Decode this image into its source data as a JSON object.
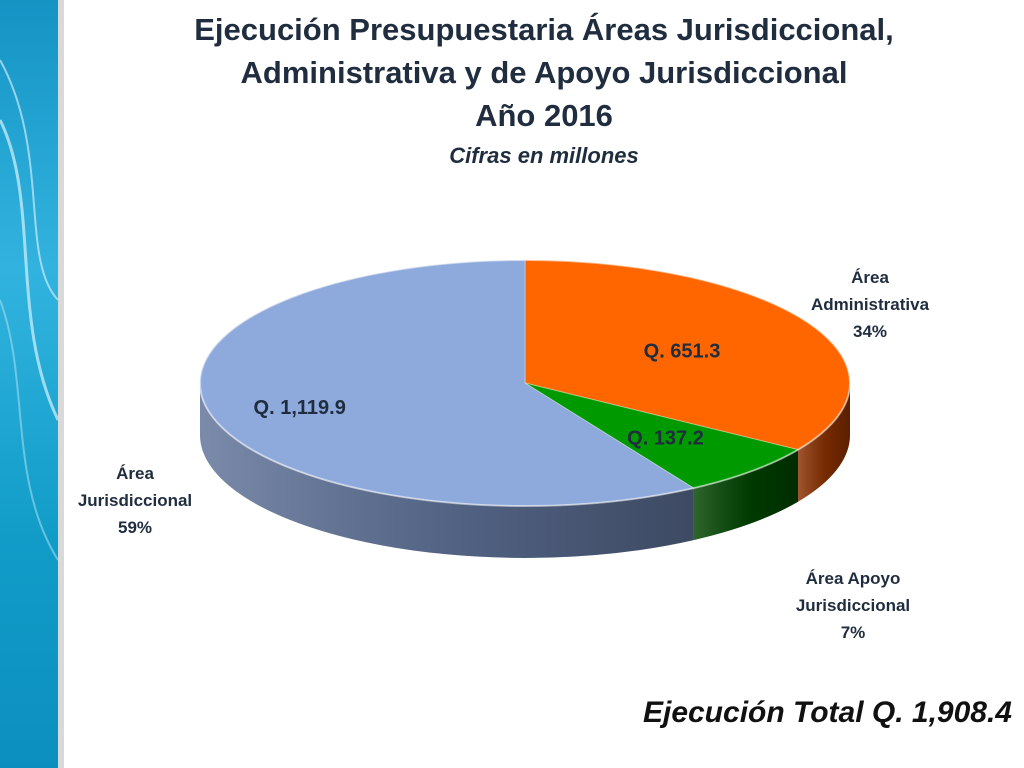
{
  "slide": {
    "title_lines": [
      "Ejecución Presupuestaria Áreas Jurisdiccional,",
      "Administrativa y de Apoyo Jurisdiccional",
      "Año 2016"
    ],
    "subtitle": "Cifras en millones",
    "total_text": "Ejecución Total Q. 1,908.4"
  },
  "chart_data": {
    "type": "pie",
    "title": "Ejecución Presupuestaria Áreas Jurisdiccional, Administrativa y de Apoyo Jurisdiccional Año 2016",
    "subtitle": "Cifras en millones",
    "style": "3d",
    "slices": [
      {
        "label_lines": [
          "Área",
          "Administrativa",
          "34%"
        ],
        "value": 651.3,
        "value_label": "Q. 651.3",
        "percent": 34,
        "color": "#ff6600",
        "side_color": "#8a3000"
      },
      {
        "label_lines": [
          "Área Apoyo",
          "Jurisdiccional",
          "7%"
        ],
        "value": 137.2,
        "value_label": "Q. 137.2",
        "percent": 7,
        "color": "#009a00",
        "side_color": "#004400"
      },
      {
        "label_lines": [
          "Área",
          "Jurisdiccional",
          "59%"
        ],
        "value": 1119.9,
        "value_label": "Q. 1,119.9",
        "percent": 59,
        "color": "#8ea9db",
        "side_color": "#5e7197"
      }
    ],
    "total": 1908.4
  },
  "theme": {
    "band_colors": [
      "#0b86b5",
      "#34b2dc",
      "#8ed6ee"
    ],
    "title_color": "#1f2d3f",
    "value_label_color": "#1f2d3f"
  }
}
